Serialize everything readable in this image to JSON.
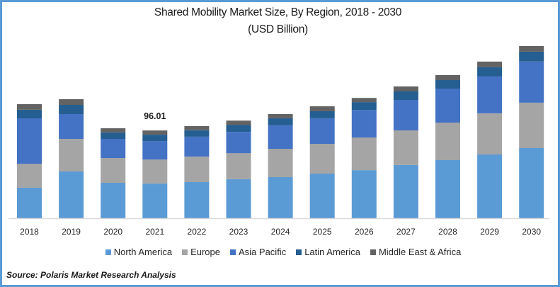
{
  "chart_data": {
    "type": "bar",
    "stacked": true,
    "title": "Shared Mobility Market Size, By Region, 2018 - 2030",
    "subtitle": "(USD Billion)",
    "xlabel": "",
    "ylabel": "",
    "categories": [
      "2018",
      "2019",
      "2020",
      "2021",
      "2022",
      "2023",
      "2024",
      "2025",
      "2026",
      "2027",
      "2028",
      "2029",
      "2030"
    ],
    "ylim": [
      0,
      100
    ],
    "grid": false,
    "legend_position": "bottom",
    "series": [
      {
        "name": "North America",
        "color": "#5b9bd5",
        "values": [
          33.3,
          51.1,
          38.7,
          37.9,
          39.5,
          42.6,
          44.9,
          48.8,
          52.6,
          58.1,
          63.5,
          69.7,
          76.7
        ]
      },
      {
        "name": "Europe",
        "color": "#a5a5a5",
        "values": [
          26.3,
          35.6,
          27.1,
          26.3,
          27.9,
          28.6,
          31.0,
          32.5,
          35.6,
          37.9,
          41.0,
          44.9,
          49.6
        ]
      },
      {
        "name": "Asia Pacific",
        "color": "#4472c4",
        "values": [
          49.6,
          27.1,
          20.9,
          20.1,
          21.7,
          23.2,
          25.6,
          27.9,
          30.2,
          33.3,
          37.2,
          40.3,
          44.9
        ]
      },
      {
        "name": "Latin America",
        "color": "#255e91",
        "values": [
          9.3,
          10.1,
          7.0,
          7.0,
          7.0,
          7.7,
          7.7,
          7.7,
          8.5,
          9.3,
          9.3,
          10.1,
          10.8
        ]
      },
      {
        "name": "Middle East & Africa",
        "color": "#636363",
        "values": [
          6.2,
          6.2,
          4.6,
          4.6,
          4.6,
          4.6,
          4.6,
          5.4,
          4.6,
          5.4,
          5.4,
          6.2,
          6.2
        ]
      }
    ],
    "annotations": [
      {
        "category": "2021",
        "text": "96.01"
      }
    ]
  },
  "source": "Source: Polaris  Market Research Analysis"
}
